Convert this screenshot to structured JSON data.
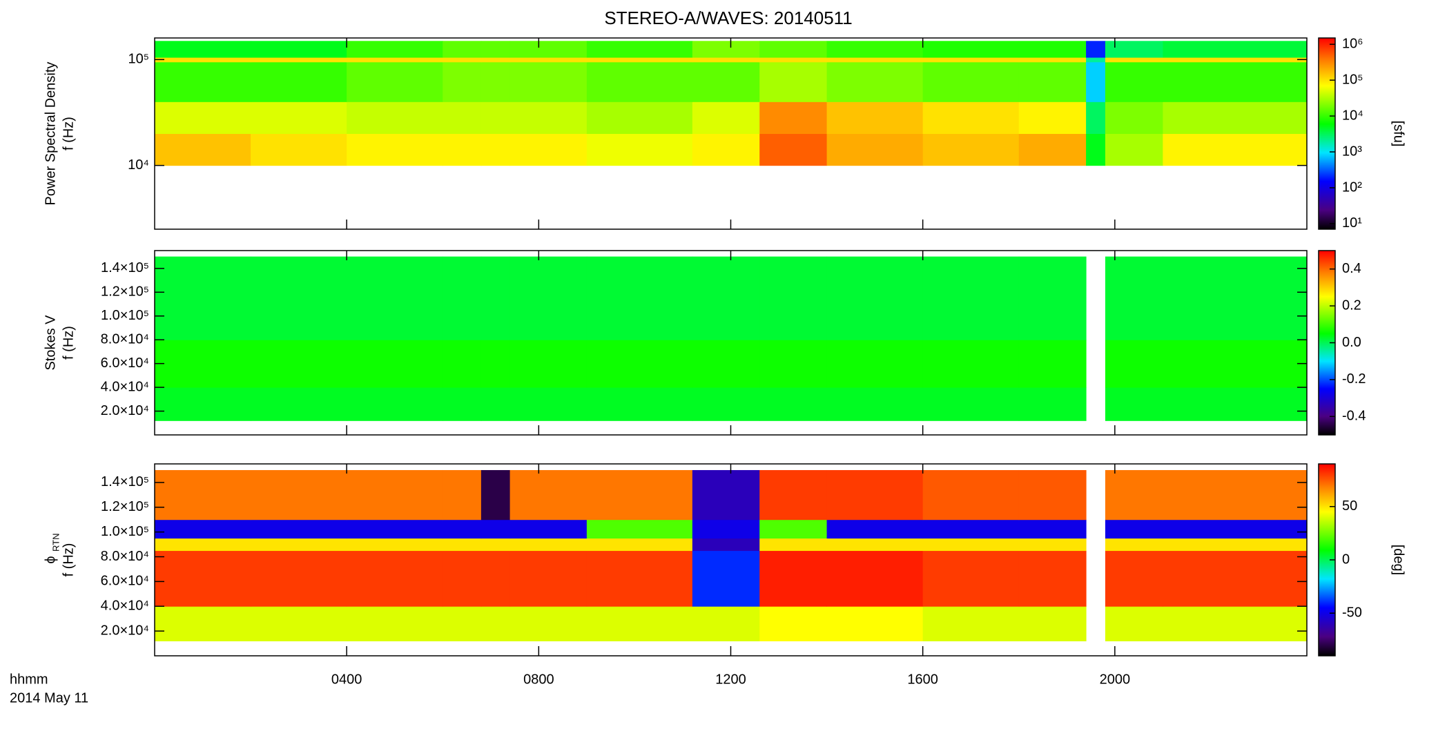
{
  "title": "STEREO-A/WAVES: 20140511",
  "x_axis": {
    "label": "hhmm",
    "date": "2014 May 11",
    "xlim": [
      0,
      24
    ],
    "xticks": [
      {
        "value": 4,
        "label": "0400"
      },
      {
        "value": 8,
        "label": "0800"
      },
      {
        "value": 12,
        "label": "1200"
      },
      {
        "value": 16,
        "label": "1600"
      },
      {
        "value": 20,
        "label": "2000"
      }
    ],
    "x_edges": [
      0,
      2,
      4,
      6,
      6.8,
      7.4,
      9,
      11.2,
      12.6,
      14,
      16,
      18,
      19.4,
      19.8,
      21,
      24
    ]
  },
  "chart_data": [
    {
      "type": "heatmap",
      "ylabel": [
        "Power Spectral Density",
        "f (Hz)"
      ],
      "log_y": true,
      "ylim": [
        2500,
        160000
      ],
      "yticks": [
        {
          "value": 10000,
          "label": "10⁴"
        },
        {
          "value": 100000,
          "label": "10⁵"
        }
      ],
      "y_edges": [
        10000,
        20000,
        40000,
        95000,
        105000,
        150000
      ],
      "values": [
        [
          150000,
          100000,
          80000,
          80000,
          80000,
          80000,
          60000,
          80000,
          500000,
          200000,
          150000,
          200000,
          5000,
          30000,
          80000
        ],
        [
          50000,
          50000,
          40000,
          40000,
          40000,
          40000,
          30000,
          50000,
          300000,
          150000,
          100000,
          80000,
          3000,
          20000,
          30000
        ],
        [
          10000,
          10000,
          15000,
          20000,
          20000,
          20000,
          15000,
          15000,
          30000,
          20000,
          15000,
          15000,
          800,
          10000,
          10000
        ],
        [
          100000,
          100000,
          100000,
          100000,
          100000,
          100000,
          100000,
          100000,
          100000,
          100000,
          100000,
          100000,
          2000,
          100000,
          100000
        ],
        [
          5000,
          5000,
          10000,
          15000,
          15000,
          15000,
          10000,
          20000,
          15000,
          10000,
          8000,
          8000,
          200,
          3000,
          4000
        ]
      ],
      "log_c": true,
      "clim": [
        7,
        1500000
      ],
      "cticks": [
        {
          "value": 10,
          "label": "10¹"
        },
        {
          "value": 100,
          "label": "10²"
        },
        {
          "value": 1000,
          "label": "10³"
        },
        {
          "value": 10000,
          "label": "10⁴"
        },
        {
          "value": 100000,
          "label": "10⁵"
        },
        {
          "value": 1000000,
          "label": "10⁶"
        }
      ],
      "clabel": "[sfu]"
    },
    {
      "type": "heatmap",
      "ylabel": [
        "Stokes V",
        "f (Hz)"
      ],
      "log_y": false,
      "ylim": [
        0,
        155000
      ],
      "yticks": [
        {
          "value": 20000,
          "label": "2.0×10⁴"
        },
        {
          "value": 40000,
          "label": "4.0×10⁴"
        },
        {
          "value": 60000,
          "label": "6.0×10⁴"
        },
        {
          "value": 80000,
          "label": "8.0×10⁴"
        },
        {
          "value": 100000,
          "label": "1.0×10⁵"
        },
        {
          "value": 120000,
          "label": "1.2×10⁵"
        },
        {
          "value": 140000,
          "label": "1.4×10⁵"
        }
      ],
      "y_edges": [
        12000,
        40000,
        80000,
        150000
      ],
      "values": [
        [
          0.03,
          0.03,
          0.03,
          0.03,
          0.03,
          0.03,
          0.03,
          0.03,
          0.03,
          0.03,
          0.03,
          0.03,
          null,
          0.03,
          0.03
        ],
        [
          0.06,
          0.06,
          0.06,
          0.06,
          0.06,
          0.06,
          0.06,
          0.06,
          0.06,
          0.06,
          0.06,
          0.06,
          null,
          0.06,
          0.06
        ],
        [
          0.02,
          0.02,
          0.02,
          0.02,
          0.02,
          0.02,
          0.02,
          0.02,
          0.02,
          0.02,
          0.02,
          0.02,
          null,
          0.02,
          0.02
        ]
      ],
      "log_c": false,
      "clim": [
        -0.5,
        0.5
      ],
      "cticks": [
        -0.4,
        -0.2,
        {
          "value": 0,
          "label": "0.0"
        },
        0.2,
        0.4
      ]
    },
    {
      "type": "heatmap",
      "ylabel": [
        "ϕ",
        "f (Hz)"
      ],
      "ylabel_sub": "RTN",
      "log_y": false,
      "ylim": [
        0,
        155000
      ],
      "yticks": [
        {
          "value": 20000,
          "label": "2.0×10⁴"
        },
        {
          "value": 40000,
          "label": "4.0×10⁴"
        },
        {
          "value": 60000,
          "label": "6.0×10⁴"
        },
        {
          "value": 80000,
          "label": "8.0×10⁴"
        },
        {
          "value": 100000,
          "label": "1.0×10⁵"
        },
        {
          "value": 120000,
          "label": "1.2×10⁵"
        },
        {
          "value": 140000,
          "label": "1.4×10⁵"
        }
      ],
      "y_edges": [
        12000,
        40000,
        85000,
        95000,
        110000,
        150000
      ],
      "values": [
        [
          40,
          40,
          40,
          40,
          40,
          40,
          40,
          40,
          45,
          45,
          40,
          40,
          null,
          40,
          40
        ],
        [
          80,
          80,
          80,
          80,
          80,
          80,
          80,
          -40,
          85,
          85,
          80,
          80,
          null,
          80,
          80
        ],
        [
          50,
          50,
          50,
          50,
          50,
          50,
          50,
          -60,
          50,
          50,
          50,
          50,
          null,
          50,
          50
        ],
        [
          -50,
          -50,
          -50,
          -50,
          -50,
          -50,
          20,
          -50,
          20,
          -50,
          -50,
          -50,
          null,
          -50,
          -50
        ],
        [
          70,
          70,
          70,
          70,
          -80,
          70,
          70,
          -60,
          80,
          80,
          75,
          75,
          null,
          70,
          70
        ]
      ],
      "log_c": false,
      "clim": [
        -90,
        90
      ],
      "cticks": [
        -50,
        0,
        50
      ],
      "clabel": "[deg]"
    }
  ]
}
